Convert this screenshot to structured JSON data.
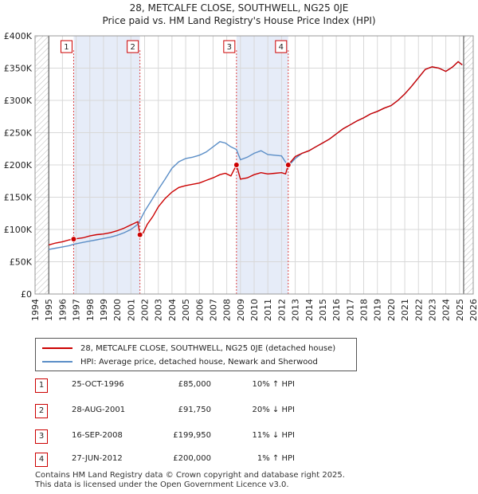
{
  "title_line1": "28, METCALFE CLOSE, SOUTHWELL, NG25 0JE",
  "title_line2": "Price paid vs. HM Land Registry's House Price Index (HPI)",
  "chart_data": {
    "type": "line",
    "title": "Price paid vs. HM Land Registry's House Price Index (HPI)",
    "xlabel": "",
    "ylabel": "",
    "xlim": [
      1994,
      2026
    ],
    "ylim": [
      0,
      400000
    ],
    "y_ticks": [
      {
        "value": 0,
        "label": "£0"
      },
      {
        "value": 50000,
        "label": "£50K"
      },
      {
        "value": 100000,
        "label": "£100K"
      },
      {
        "value": 150000,
        "label": "£150K"
      },
      {
        "value": 200000,
        "label": "£200K"
      },
      {
        "value": 250000,
        "label": "£250K"
      },
      {
        "value": 300000,
        "label": "£300K"
      },
      {
        "value": 350000,
        "label": "£350K"
      },
      {
        "value": 400000,
        "label": "£400K"
      }
    ],
    "x_ticks": [
      "1994",
      "1995",
      "1996",
      "1997",
      "1998",
      "1999",
      "2000",
      "2001",
      "2002",
      "2003",
      "2004",
      "2005",
      "2006",
      "2007",
      "2008",
      "2009",
      "2010",
      "2011",
      "2012",
      "2013",
      "2014",
      "2015",
      "2016",
      "2017",
      "2018",
      "2019",
      "2020",
      "2021",
      "2022",
      "2023",
      "2024",
      "2025",
      "2026"
    ],
    "data_range": [
      1995.0,
      2025.3
    ],
    "shaded_periods": [
      [
        1996.82,
        2001.66
      ],
      [
        2008.71,
        2012.49
      ]
    ],
    "series": [
      {
        "name": "28, METCALFE CLOSE, SOUTHWELL, NG25 0JE (detached house)",
        "color": "#cc0000",
        "points": [
          [
            1995.0,
            76000
          ],
          [
            1995.5,
            79000
          ],
          [
            1996.0,
            81000
          ],
          [
            1996.5,
            84000
          ],
          [
            1996.82,
            85000
          ],
          [
            1997.5,
            87000
          ],
          [
            1998.0,
            90000
          ],
          [
            1998.5,
            92000
          ],
          [
            1999.0,
            93000
          ],
          [
            1999.5,
            95000
          ],
          [
            2000.0,
            98000
          ],
          [
            2000.5,
            102000
          ],
          [
            2001.0,
            107000
          ],
          [
            2001.5,
            112000
          ],
          [
            2001.66,
            91750
          ],
          [
            2001.9,
            95000
          ],
          [
            2002.2,
            108000
          ],
          [
            2002.6,
            120000
          ],
          [
            2003.0,
            135000
          ],
          [
            2003.5,
            148000
          ],
          [
            2004.0,
            158000
          ],
          [
            2004.5,
            165000
          ],
          [
            2005.0,
            168000
          ],
          [
            2005.5,
            170000
          ],
          [
            2006.0,
            172000
          ],
          [
            2006.5,
            176000
          ],
          [
            2007.0,
            180000
          ],
          [
            2007.5,
            185000
          ],
          [
            2007.9,
            187000
          ],
          [
            2008.3,
            183000
          ],
          [
            2008.71,
            199950
          ],
          [
            2009.0,
            178000
          ],
          [
            2009.5,
            180000
          ],
          [
            2010.0,
            185000
          ],
          [
            2010.5,
            188000
          ],
          [
            2011.0,
            186000
          ],
          [
            2011.5,
            187000
          ],
          [
            2012.0,
            188000
          ],
          [
            2012.3,
            186000
          ],
          [
            2012.49,
            200000
          ],
          [
            2013.0,
            213000
          ],
          [
            2013.5,
            218000
          ],
          [
            2014.0,
            222000
          ],
          [
            2014.5,
            228000
          ],
          [
            2015.0,
            234000
          ],
          [
            2015.5,
            240000
          ],
          [
            2016.0,
            248000
          ],
          [
            2016.5,
            256000
          ],
          [
            2017.0,
            262000
          ],
          [
            2017.5,
            268000
          ],
          [
            2018.0,
            273000
          ],
          [
            2018.5,
            279000
          ],
          [
            2019.0,
            283000
          ],
          [
            2019.5,
            288000
          ],
          [
            2020.0,
            292000
          ],
          [
            2020.5,
            300000
          ],
          [
            2021.0,
            310000
          ],
          [
            2021.5,
            322000
          ],
          [
            2022.0,
            335000
          ],
          [
            2022.5,
            348000
          ],
          [
            2023.0,
            352000
          ],
          [
            2023.5,
            350000
          ],
          [
            2024.0,
            345000
          ],
          [
            2024.5,
            352000
          ],
          [
            2024.9,
            360000
          ],
          [
            2025.2,
            355000
          ]
        ]
      },
      {
        "name": "HPI: Average price, detached house, Newark and Sherwood",
        "color": "#5b8ec7",
        "points": [
          [
            1995.0,
            69000
          ],
          [
            1995.5,
            71000
          ],
          [
            1996.0,
            73000
          ],
          [
            1996.5,
            75000
          ],
          [
            1996.82,
            77000
          ],
          [
            1997.5,
            80000
          ],
          [
            1998.0,
            82000
          ],
          [
            1998.5,
            84000
          ],
          [
            1999.0,
            86000
          ],
          [
            1999.5,
            88000
          ],
          [
            2000.0,
            91000
          ],
          [
            2000.5,
            95000
          ],
          [
            2001.0,
            100000
          ],
          [
            2001.5,
            108000
          ],
          [
            2001.66,
            114000
          ],
          [
            2002.0,
            128000
          ],
          [
            2002.5,
            145000
          ],
          [
            2003.0,
            162000
          ],
          [
            2003.5,
            178000
          ],
          [
            2004.0,
            195000
          ],
          [
            2004.5,
            205000
          ],
          [
            2005.0,
            210000
          ],
          [
            2005.5,
            212000
          ],
          [
            2006.0,
            215000
          ],
          [
            2006.5,
            220000
          ],
          [
            2007.0,
            228000
          ],
          [
            2007.5,
            236000
          ],
          [
            2007.9,
            234000
          ],
          [
            2008.3,
            228000
          ],
          [
            2008.71,
            224000
          ],
          [
            2009.0,
            208000
          ],
          [
            2009.5,
            212000
          ],
          [
            2010.0,
            218000
          ],
          [
            2010.5,
            222000
          ],
          [
            2011.0,
            216000
          ],
          [
            2011.5,
            215000
          ],
          [
            2012.0,
            214000
          ],
          [
            2012.49,
            198000
          ],
          [
            2013.0,
            210000
          ],
          [
            2013.5,
            218000
          ],
          [
            2014.0,
            222000
          ],
          [
            2014.5,
            228000
          ],
          [
            2015.0,
            234000
          ],
          [
            2015.5,
            240000
          ],
          [
            2016.0,
            248000
          ],
          [
            2016.5,
            256000
          ],
          [
            2017.0,
            262000
          ],
          [
            2017.5,
            268000
          ],
          [
            2018.0,
            273000
          ],
          [
            2018.5,
            279000
          ],
          [
            2019.0,
            283000
          ],
          [
            2019.5,
            288000
          ],
          [
            2020.0,
            292000
          ],
          [
            2020.5,
            300000
          ],
          [
            2021.0,
            310000
          ],
          [
            2021.5,
            322000
          ],
          [
            2022.0,
            335000
          ],
          [
            2022.5,
            348000
          ],
          [
            2023.0,
            352000
          ],
          [
            2023.5,
            350000
          ],
          [
            2024.0,
            345000
          ],
          [
            2024.5,
            352000
          ],
          [
            2024.9,
            360000
          ],
          [
            2025.2,
            355000
          ]
        ]
      }
    ],
    "sales": [
      {
        "label": "1",
        "year": 1996.82,
        "price": 85000
      },
      {
        "label": "2",
        "year": 2001.66,
        "price": 91750
      },
      {
        "label": "3",
        "year": 2008.71,
        "price": 199950
      },
      {
        "label": "4",
        "year": 2012.49,
        "price": 200000
      }
    ]
  },
  "legend": {
    "red_label": "28, METCALFE CLOSE, SOUTHWELL, NG25 0JE (detached house)",
    "blue_label": "HPI: Average price, detached house, Newark and Sherwood"
  },
  "transactions": [
    {
      "num": "1",
      "date": "25-OCT-1996",
      "price": "£85,000",
      "hpi": "10% ↑ HPI"
    },
    {
      "num": "2",
      "date": "28-AUG-2001",
      "price": "£91,750",
      "hpi": "20% ↓ HPI"
    },
    {
      "num": "3",
      "date": "16-SEP-2008",
      "price": "£199,950",
      "hpi": "11% ↓ HPI"
    },
    {
      "num": "4",
      "date": "27-JUN-2012",
      "price": "£200,000",
      "hpi": "1% ↑ HPI"
    }
  ],
  "footer_line1": "Contains HM Land Registry data © Crown copyright and database right 2025.",
  "footer_line2": "This data is licensed under the Open Government Licence v3.0."
}
